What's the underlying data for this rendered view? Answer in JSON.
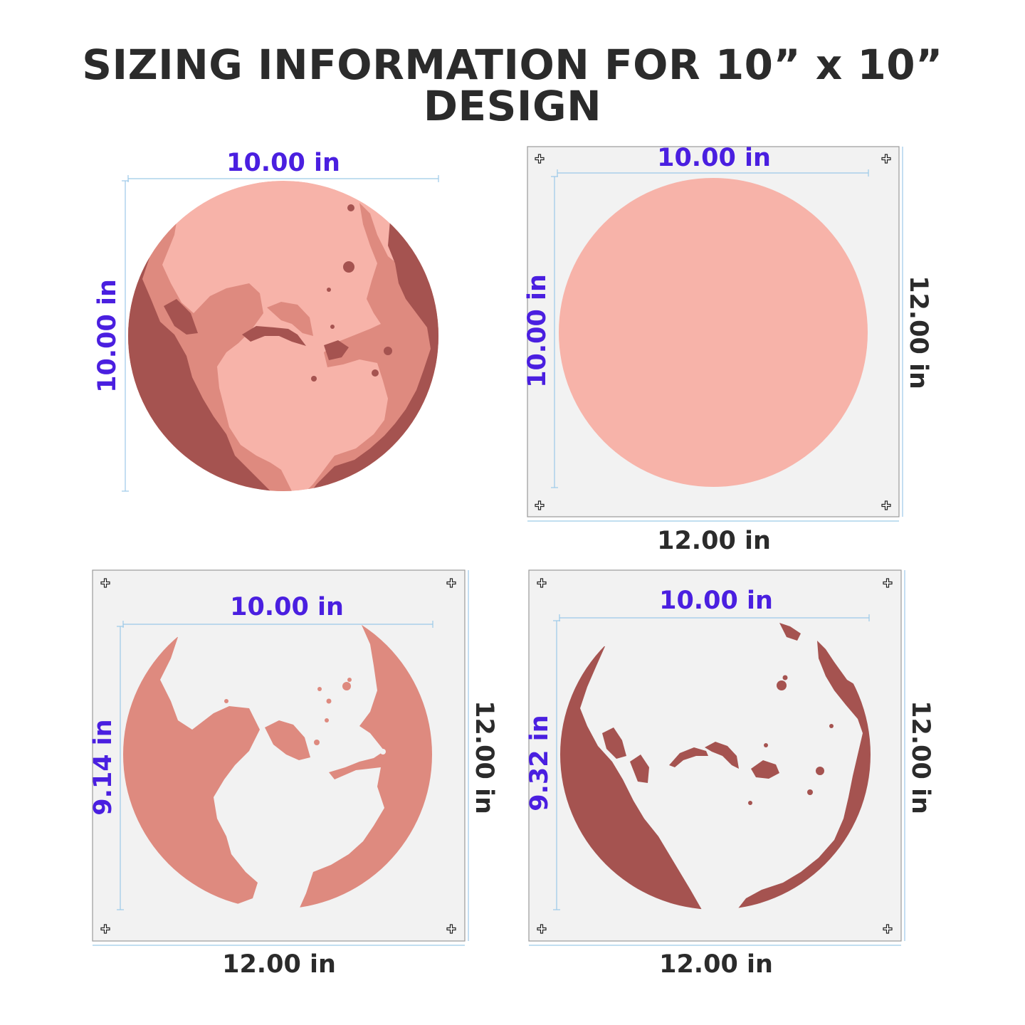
{
  "page": {
    "title": "SIZING INFORMATION FOR 10” x 10” DESIGN"
  },
  "colors": {
    "dimension_text": "#4a1fe0",
    "dark_text": "#2b2b2b",
    "guide_line": "#9cc9e8",
    "sheet": "#f2f2f2",
    "sheet_border": "#9a9a9a",
    "light_pink": "#f7b3a9",
    "medium_pink": "#de8a7f",
    "dark_red": "#a55350"
  },
  "panels": [
    {
      "name": "full-design",
      "width_label": "10.00  in",
      "height_label": "10.00 in"
    },
    {
      "name": "base-layer-stencil",
      "width_label": "10.00  in",
      "height_label": "10.00  in",
      "sheet_width_label": "12.00  in",
      "sheet_height_label": "12.00  in"
    },
    {
      "name": "medium-layer-stencil",
      "width_label": "10.00  in",
      "height_label": "9.14  in",
      "sheet_width_label": "12.00  in",
      "sheet_height_label": "12.00  in"
    },
    {
      "name": "dark-layer-stencil",
      "width_label": "10.00  in",
      "height_label": "9.32  in",
      "sheet_width_label": "12.00  in",
      "sheet_height_label": "12.00  in"
    }
  ]
}
